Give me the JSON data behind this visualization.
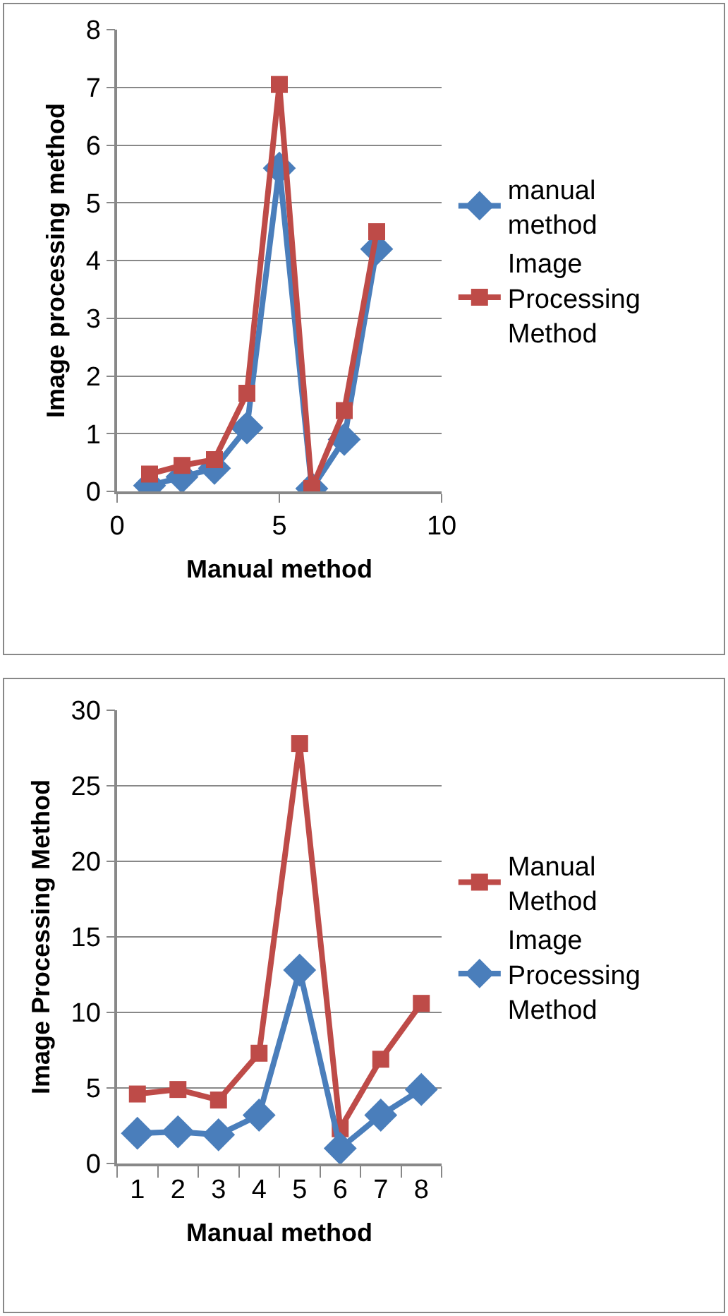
{
  "chart_data": [
    {
      "type": "line",
      "x": [
        1,
        2,
        3,
        4,
        5,
        6,
        7,
        8
      ],
      "xlabel": "Manual method",
      "ylabel": "Image processing method",
      "xlim": [
        0,
        10
      ],
      "xticks": [
        0,
        5,
        10
      ],
      "ylim": [
        0,
        8
      ],
      "yticks": [
        0,
        1,
        2,
        3,
        4,
        5,
        6,
        7,
        8
      ],
      "grid": "y",
      "legend": "right",
      "series": [
        {
          "name": "manual method",
          "color": "#4a7ebb",
          "marker": "diamond",
          "values": [
            0.1,
            0.25,
            0.4,
            1.1,
            5.6,
            0.05,
            0.9,
            4.2
          ]
        },
        {
          "name": "Image Processing Method",
          "color": "#be4b48",
          "marker": "square",
          "values": [
            0.3,
            0.45,
            0.55,
            1.7,
            7.05,
            0.05,
            1.4,
            4.5
          ]
        }
      ]
    },
    {
      "type": "line",
      "categories": [
        "1",
        "2",
        "3",
        "4",
        "5",
        "6",
        "7",
        "8"
      ],
      "xlabel": "Manual method",
      "ylabel": "Image Processing Method",
      "ylim": [
        0,
        30
      ],
      "yticks": [
        0,
        5,
        10,
        15,
        20,
        25,
        30
      ],
      "grid": "y",
      "legend": "right",
      "series": [
        {
          "name": "Manual Method",
          "color": "#be4b48",
          "marker": "square",
          "values": [
            4.6,
            4.9,
            4.2,
            7.3,
            27.8,
            2.3,
            6.9,
            10.6
          ]
        },
        {
          "name": "Image Processing Method",
          "color": "#4a7ebb",
          "marker": "diamond",
          "values": [
            2.0,
            2.1,
            1.9,
            3.2,
            12.8,
            1.0,
            3.2,
            4.9
          ]
        }
      ]
    }
  ]
}
